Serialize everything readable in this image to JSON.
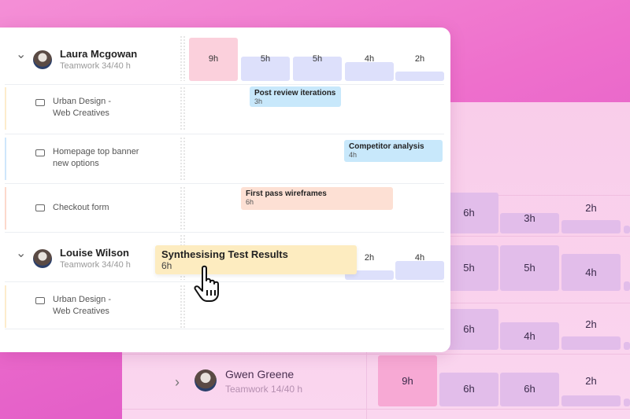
{
  "colors": {
    "overload": "#fbd0dc",
    "normal": "#dde0fb",
    "bg_overload": "#f7a9d4",
    "bg_normal": "#e2bdea"
  },
  "background_rows": [
    {
      "cells": [
        null,
        6,
        3,
        2,
        1
      ]
    },
    {
      "cells": [
        null,
        5,
        5,
        4,
        1
      ]
    },
    {
      "cells": [
        null,
        6,
        4,
        2,
        1
      ]
    },
    {
      "person": {
        "name": "Gwen Greene",
        "sub": "Teamwork  14/40 h"
      },
      "cells": [
        9,
        6,
        6,
        2,
        1
      ]
    }
  ],
  "people": [
    {
      "name": "Laura Mcgowan",
      "sub": "Teamwork  34/40 h",
      "hours": [
        9,
        5,
        5,
        4,
        2
      ],
      "projects": [
        {
          "label": "Urban Design -\nWeb Creatives",
          "stripe": "#fdeccc"
        },
        {
          "label": "Homepage top banner\nnew options",
          "stripe": "#cfe6fb"
        },
        {
          "label": "Checkout form",
          "stripe": "#fcd9cc"
        }
      ]
    },
    {
      "name": "Louise Wilson",
      "sub": "Teamwork  34/40 h",
      "hours": [
        null,
        null,
        null,
        2,
        4
      ],
      "projects": [
        {
          "label": "Urban Design -\nWeb Creatives",
          "stripe": "#fdeccc"
        }
      ]
    }
  ],
  "tasks": [
    {
      "title": "Post review iterations",
      "hours": "3h",
      "color": "#c8e8fb"
    },
    {
      "title": "Competitor analysis",
      "hours": "4h",
      "color": "#c8e8fb"
    },
    {
      "title": "First pass wireframes",
      "hours": "6h",
      "color": "#fde0d4"
    }
  ],
  "dragged_task": {
    "title": "Synthesising Test Results",
    "hours": "6h",
    "color": "#fdecc0"
  },
  "cursor_icon": "hand-pointer-icon"
}
